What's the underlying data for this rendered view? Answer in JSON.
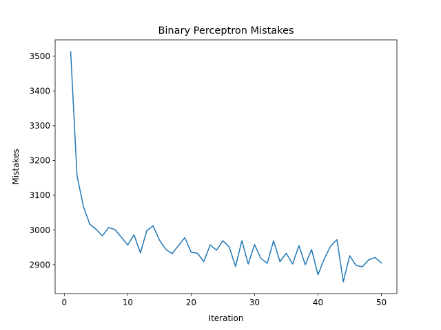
{
  "chart_data": {
    "type": "line",
    "title": "Binary Perceptron Mistakes",
    "xlabel": "Iteration",
    "ylabel": "Mistakes",
    "xlim": [
      -1.45,
      52.45
    ],
    "ylim": [
      2817,
      3547
    ],
    "x_ticks": [
      0,
      10,
      20,
      30,
      40,
      50
    ],
    "y_ticks": [
      2900,
      3000,
      3100,
      3200,
      3300,
      3400,
      3500
    ],
    "grid": false,
    "line_color": "#1f77b4",
    "series": [
      {
        "x": [
          1,
          2,
          3,
          4,
          5,
          6,
          7,
          8,
          9,
          10,
          11,
          12,
          13,
          14,
          15,
          16,
          17,
          18,
          19,
          20,
          21,
          22,
          23,
          24,
          25,
          26,
          27,
          28,
          29,
          30,
          31,
          32,
          33,
          34,
          35,
          36,
          37,
          38,
          39,
          40,
          41,
          42,
          43,
          44,
          45,
          46,
          47,
          48,
          49,
          50
        ],
        "values": [
          3513,
          3157,
          3068,
          3017,
          3002,
          2983,
          3007,
          3001,
          2979,
          2957,
          2986,
          2934,
          2998,
          3012,
          2971,
          2944,
          2932,
          2955,
          2978,
          2936,
          2933,
          2909,
          2957,
          2942,
          2969,
          2951,
          2895,
          2969,
          2902,
          2958,
          2918,
          2904,
          2969,
          2909,
          2933,
          2902,
          2955,
          2900,
          2944,
          2871,
          2917,
          2954,
          2972,
          2851,
          2926,
          2898,
          2894,
          2914,
          2921,
          2905
        ]
      }
    ]
  }
}
